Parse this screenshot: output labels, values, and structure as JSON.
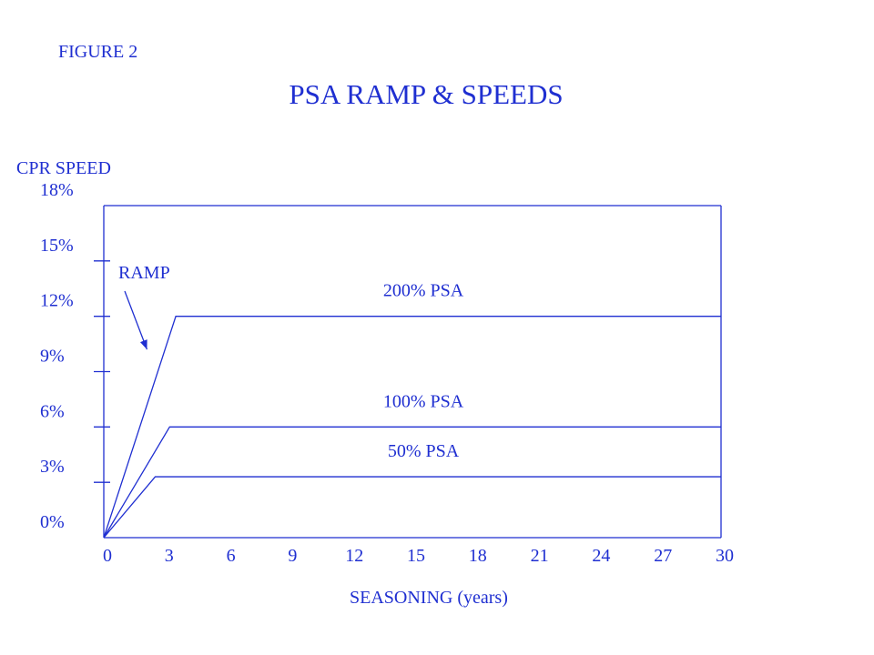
{
  "figure_label": "FIGURE 2",
  "chart_data": {
    "type": "line",
    "title": "PSA RAMP & SPEEDS",
    "xlabel": "SEASONING (years)",
    "ylabel": "CPR SPEED",
    "xlim": [
      0,
      30
    ],
    "ylim": [
      0,
      18
    ],
    "x_ticks": [
      0,
      3,
      6,
      9,
      12,
      15,
      18,
      21,
      24,
      27,
      30
    ],
    "x_tick_labels": [
      "0",
      "3",
      "6",
      "9",
      "12",
      "15",
      "18",
      "21",
      "24",
      "27",
      "30"
    ],
    "y_ticks": [
      0,
      3,
      6,
      9,
      12,
      15,
      18
    ],
    "y_tick_labels": [
      "0%",
      "3%",
      "6%",
      "9%",
      "12%",
      "15%",
      "18%"
    ],
    "grid": false,
    "legend": "none",
    "color": "#1f2fd1",
    "series": [
      {
        "name": "200% PSA",
        "x": [
          0,
          3.5,
          30
        ],
        "y": [
          0,
          12,
          12
        ]
      },
      {
        "name": "100% PSA",
        "x": [
          0,
          3.2,
          30
        ],
        "y": [
          0,
          6,
          6
        ]
      },
      {
        "name": "50% PSA",
        "x": [
          0,
          2.5,
          30
        ],
        "y": [
          0,
          3.3,
          3.3
        ]
      }
    ],
    "annotations": [
      {
        "text": "RAMP",
        "points_to": {
          "x": 2.1,
          "y": 10.2
        }
      }
    ]
  }
}
